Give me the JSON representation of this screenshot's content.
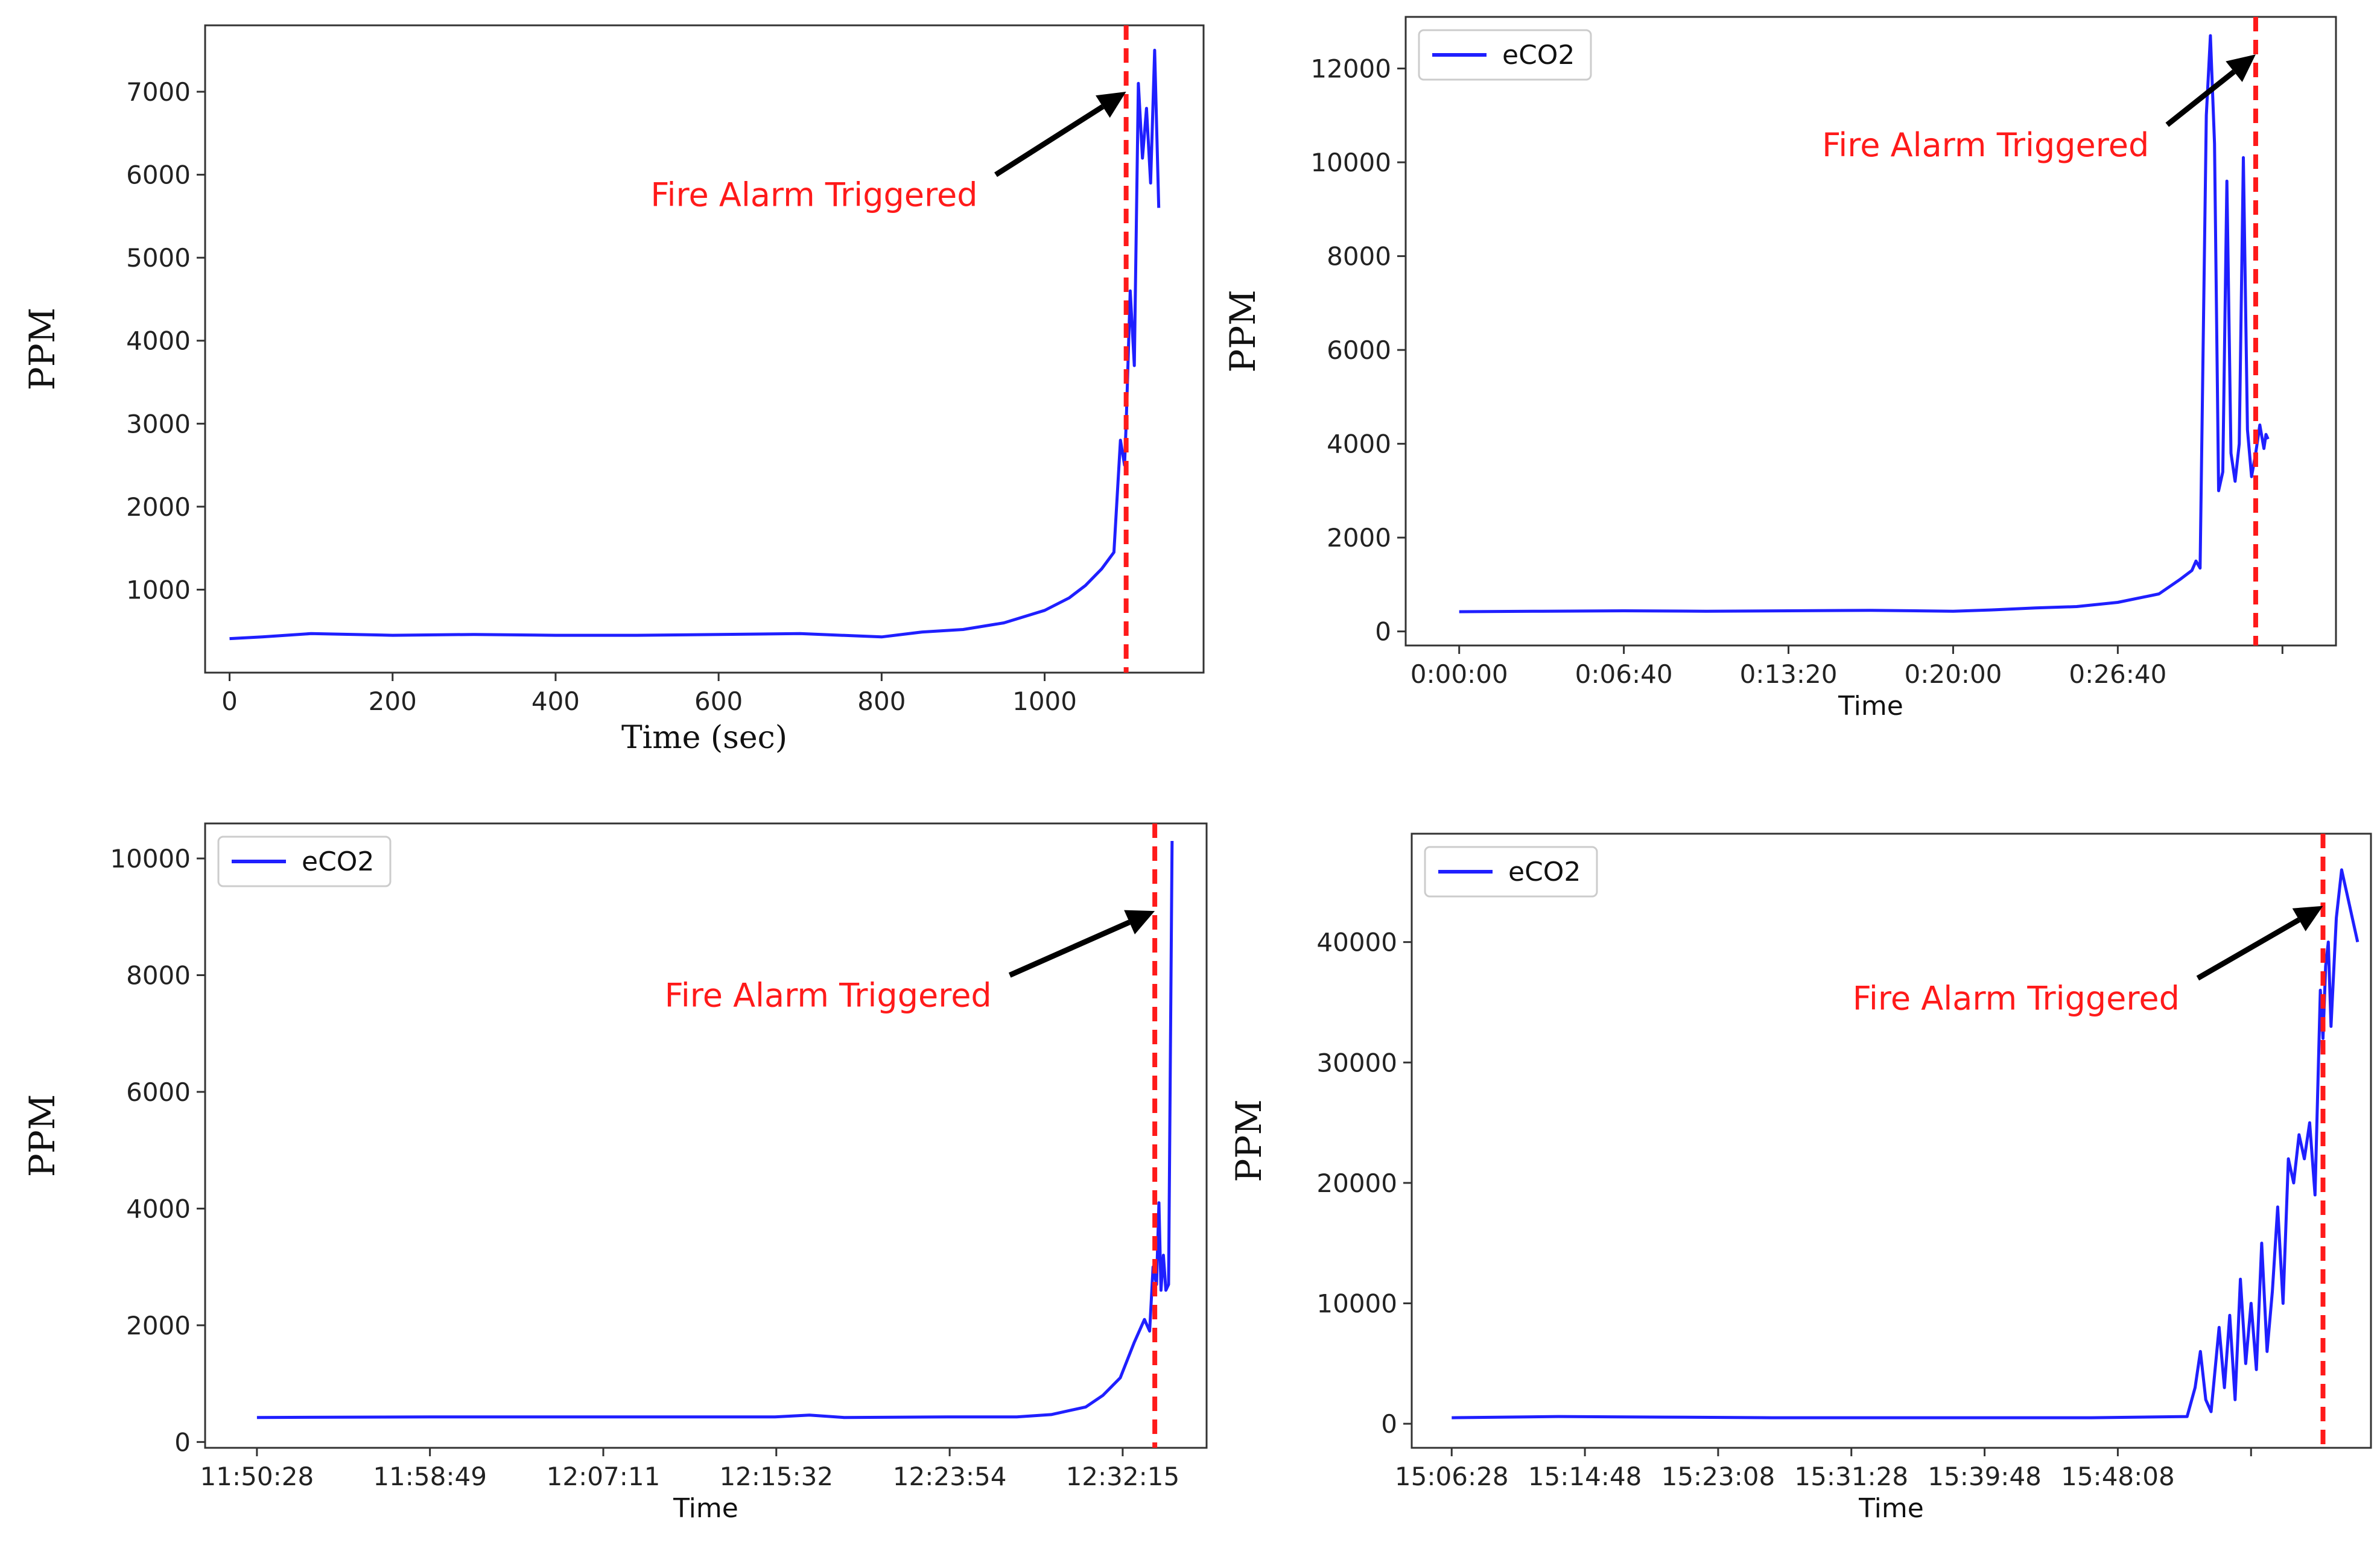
{
  "colors": {
    "series": "#1f1fff",
    "alarm": "#ff1a1a",
    "arrow": "#000000",
    "frame": "#333333"
  },
  "chart_data": [
    {
      "type": "line",
      "id": "top-left",
      "xlabel": "Time (sec)",
      "ylabel": "PPM",
      "xlim": [
        -30,
        1195
      ],
      "ylim": [
        0,
        7800
      ],
      "x_ticks": [
        0,
        200,
        400,
        600,
        800,
        1000
      ],
      "x_tick_labels": [
        "0",
        "200",
        "400",
        "600",
        "800",
        "1000"
      ],
      "y_ticks": [
        1000,
        2000,
        3000,
        4000,
        5000,
        6000,
        7000
      ],
      "y_tick_labels": [
        "1000",
        "2000",
        "3000",
        "4000",
        "5000",
        "6000",
        "7000"
      ],
      "legend": null,
      "alarm_x": 1100,
      "annotation": {
        "text": "Fire Alarm Triggered",
        "xy": [
          1100,
          7000
        ],
        "xytext_anchor": [
          940,
          6000
        ]
      },
      "series": [
        {
          "x": [
            0,
            40,
            100,
            200,
            300,
            400,
            500,
            600,
            700,
            800,
            850,
            900,
            950,
            1000,
            1030,
            1050,
            1070,
            1085,
            1093,
            1098,
            1100,
            1105,
            1110,
            1115,
            1120,
            1125,
            1130,
            1135,
            1140
          ],
          "values": [
            410,
            430,
            470,
            450,
            460,
            450,
            450,
            460,
            470,
            430,
            490,
            520,
            600,
            750,
            900,
            1050,
            1250,
            1450,
            2800,
            2500,
            3000,
            4600,
            3700,
            7100,
            6200,
            6800,
            5900,
            7500,
            5600
          ]
        }
      ]
    },
    {
      "type": "line",
      "id": "top-right",
      "xlabel": "Time",
      "ylabel": "PPM",
      "xlim": [
        -130,
        2130
      ],
      "ylim": [
        -300,
        13100
      ],
      "x_ticks": [
        0,
        400,
        800,
        1200,
        1600,
        2000
      ],
      "x_tick_labels": [
        "0:00:00",
        "0:06:40",
        "0:13:20",
        "0:20:00",
        "0:26:40",
        ""
      ],
      "y_ticks": [
        0,
        2000,
        4000,
        6000,
        8000,
        10000,
        12000
      ],
      "y_tick_labels": [
        "0",
        "2000",
        "4000",
        "6000",
        "8000",
        "10000",
        "12000"
      ],
      "legend": {
        "position": "top-left",
        "entries": [
          "eCO2"
        ]
      },
      "alarm_x": 1935,
      "annotation": {
        "text": "Fire Alarm Triggered",
        "xy": [
          1935,
          12300
        ],
        "xytext_anchor": [
          1720,
          10800
        ]
      },
      "series": [
        {
          "name": "eCO2",
          "x": [
            0,
            200,
            400,
            600,
            800,
            1000,
            1200,
            1300,
            1400,
            1500,
            1600,
            1700,
            1750,
            1780,
            1790,
            1800,
            1815,
            1825,
            1835,
            1845,
            1855,
            1865,
            1875,
            1885,
            1895,
            1905,
            1915,
            1925,
            1935,
            1945,
            1955,
            1960,
            1965
          ],
          "values": [
            420,
            430,
            440,
            430,
            440,
            450,
            430,
            460,
            500,
            530,
            620,
            800,
            1100,
            1300,
            1500,
            1350,
            11000,
            12700,
            10400,
            3000,
            3400,
            9600,
            3800,
            3200,
            4000,
            10100,
            4300,
            3300,
            3800,
            4400,
            3900,
            4200,
            4100
          ]
        }
      ]
    },
    {
      "type": "line",
      "id": "bottom-left",
      "xlabel": "Time",
      "ylabel": "PPM",
      "xlim": [
        -150,
        2750
      ],
      "ylim": [
        -100,
        10600
      ],
      "x_ticks": [
        0,
        501,
        1003,
        1504,
        2006,
        2507
      ],
      "x_tick_labels": [
        "11:50:28",
        "11:58:49",
        "12:07:11",
        "12:15:32",
        "12:23:54",
        "12:32:15"
      ],
      "y_ticks": [
        0,
        2000,
        4000,
        6000,
        8000,
        10000
      ],
      "y_tick_labels": [
        "0",
        "2000",
        "4000",
        "6000",
        "8000",
        "10000"
      ],
      "legend": {
        "position": "top-left",
        "entries": [
          "eCO2"
        ]
      },
      "alarm_x": 2600,
      "annotation": {
        "text": "Fire Alarm Triggered",
        "xy": [
          2600,
          9100
        ],
        "xytext_anchor": [
          2180,
          8000
        ]
      },
      "series": [
        {
          "name": "eCO2",
          "x": [
            0,
            500,
            1000,
            1500,
            1600,
            1700,
            2000,
            2200,
            2300,
            2400,
            2450,
            2500,
            2540,
            2570,
            2585,
            2595,
            2605,
            2612,
            2618,
            2625,
            2632,
            2640,
            2650
          ],
          "values": [
            420,
            430,
            430,
            430,
            460,
            420,
            430,
            430,
            470,
            600,
            800,
            1100,
            1700,
            2100,
            1900,
            3000,
            2700,
            4100,
            2600,
            3200,
            2600,
            2700,
            10300
          ]
        }
      ]
    },
    {
      "type": "line",
      "id": "bottom-right",
      "xlabel": "Time",
      "ylabel": "PPM",
      "xlim": [
        -150,
        3450
      ],
      "ylim": [
        -2000,
        49000
      ],
      "x_ticks": [
        0,
        500,
        1000,
        1500,
        2000,
        2500,
        3000
      ],
      "x_tick_labels": [
        "15:06:28",
        "15:14:48",
        "15:23:08",
        "15:31:28",
        "15:39:48",
        "15:48:08",
        ""
      ],
      "y_ticks": [
        0,
        10000,
        20000,
        30000,
        40000
      ],
      "y_tick_labels": [
        "0",
        "10000",
        "20000",
        "30000",
        "40000"
      ],
      "legend": {
        "position": "top-left",
        "entries": [
          "eCO2"
        ]
      },
      "alarm_x": 3270,
      "annotation": {
        "text": "Fire Alarm Triggered",
        "xy": [
          3270,
          43000
        ],
        "xytext_anchor": [
          2800,
          37000
        ]
      },
      "series": [
        {
          "name": "eCO2",
          "x": [
            0,
            400,
            800,
            1200,
            1600,
            2000,
            2400,
            2760,
            2790,
            2810,
            2830,
            2850,
            2880,
            2900,
            2920,
            2940,
            2960,
            2980,
            3000,
            3020,
            3040,
            3060,
            3080,
            3100,
            3120,
            3140,
            3160,
            3180,
            3200,
            3220,
            3240,
            3260,
            3270,
            3280,
            3290,
            3300,
            3320,
            3340,
            3360,
            3380,
            3400
          ],
          "values": [
            500,
            600,
            550,
            500,
            500,
            500,
            500,
            600,
            3000,
            6000,
            2000,
            1000,
            8000,
            3000,
            9000,
            2000,
            12000,
            5000,
            10000,
            4500,
            15000,
            6000,
            11000,
            18000,
            10000,
            22000,
            20000,
            24000,
            22000,
            25000,
            19000,
            36000,
            32000,
            38000,
            40000,
            33000,
            42000,
            46000,
            44000,
            42000,
            40000
          ]
        }
      ]
    }
  ]
}
